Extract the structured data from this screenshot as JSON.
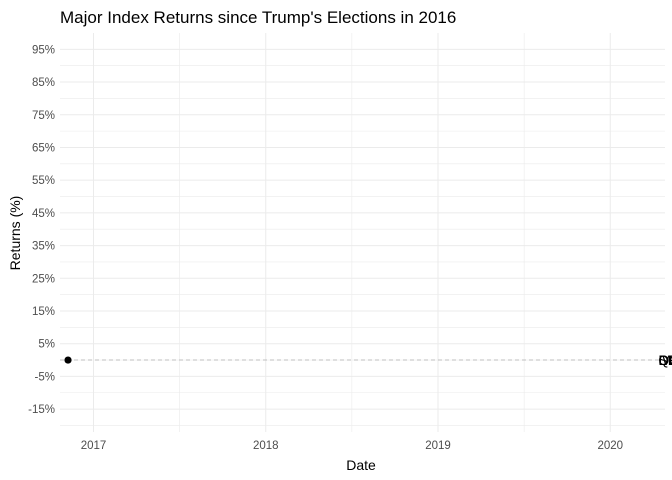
{
  "chart_data": {
    "type": "line",
    "title": "Major Index Returns since Trump's Elections in 2016",
    "xlabel": "Date",
    "ylabel": "Returns (%)",
    "x_ticks": [
      "2017",
      "2018",
      "2019",
      "2020"
    ],
    "x_range": [
      "2016-10-22",
      "2020-04-26"
    ],
    "y_ticks": [
      {
        "value": -15,
        "label": "-15%"
      },
      {
        "value": -5,
        "label": "-5%"
      },
      {
        "value": 5,
        "label": "5%"
      },
      {
        "value": 15,
        "label": "15%"
      },
      {
        "value": 25,
        "label": "25%"
      },
      {
        "value": 35,
        "label": "35%"
      },
      {
        "value": 45,
        "label": "45%"
      },
      {
        "value": 55,
        "label": "55%"
      },
      {
        "value": 65,
        "label": "65%"
      },
      {
        "value": 75,
        "label": "75%"
      },
      {
        "value": 85,
        "label": "85%"
      },
      {
        "value": 95,
        "label": "95%"
      }
    ],
    "ylim": [
      -22,
      100
    ],
    "reference_line": {
      "y": 0,
      "style": "dashed"
    },
    "start_point": {
      "x": "2016-11-08",
      "y": 0
    },
    "end_point_x": "2020-04-12",
    "end_labels": [
      {
        "text": "DIA",
        "y": 0
      },
      {
        "text": "SPY",
        "y": 0
      },
      {
        "text": "QQQ",
        "y": 0
      },
      {
        "text": "IWM",
        "y": 0
      }
    ],
    "grid": true,
    "legend": "none",
    "colors": {
      "grid": "#ebebeb",
      "reference": "#bfbfbf",
      "point": "#000000"
    }
  }
}
